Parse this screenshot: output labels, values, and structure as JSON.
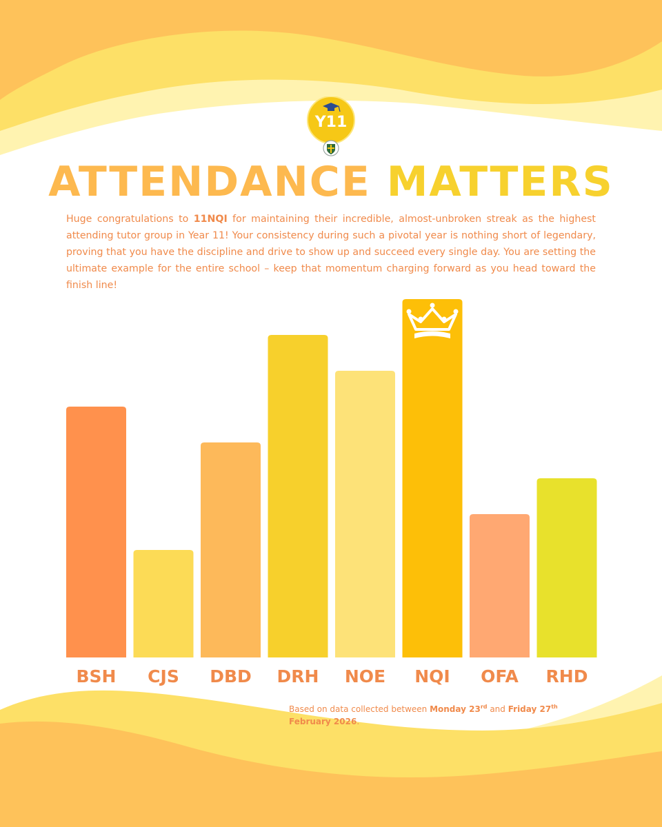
{
  "header": {
    "badge_text": "Y11",
    "title_part1": "ATTENDANCE",
    "title_part2": "MATTERS"
  },
  "intro": {
    "before": "Huge congratulations to ",
    "highlight": "11NQI",
    "after": " for maintaining their incredible, almost-unbroken streak as the highest attending tutor group in Year 11! Your consistency during such a pivotal year is nothing short of legendary, proving that you have the discipline and drive to show up and succeed every single day. You are setting the ultimate example for the entire school – keep that momentum charging forward as you head toward the finish line!"
  },
  "chart_data": {
    "type": "bar",
    "categories": [
      "BSH",
      "CJS",
      "DBD",
      "DRH",
      "NOE",
      "NQI",
      "OFA",
      "RHD"
    ],
    "values": [
      70,
      30,
      60,
      90,
      80,
      100,
      40,
      50
    ],
    "colors": [
      "#FF914D",
      "#FCDB56",
      "#FDB95A",
      "#F7D02C",
      "#FDE278",
      "#FDBF08",
      "#FFA872",
      "#E8E12C"
    ],
    "ylim": [
      0,
      100
    ],
    "grid": false,
    "highlight_category": "NQI",
    "highlight_icon": "crown-icon"
  },
  "footnote": {
    "prefix": "Based on data collected between ",
    "start_day": "Monday 23",
    "start_sup": "rd",
    "middle": " and ",
    "end_day": "Friday 27",
    "end_sup": "th",
    "end_month": "February 2026",
    "suffix": "."
  },
  "colors": {
    "orange_text": "#F08A4B",
    "title_orange": "#FDB94F",
    "title_yellow": "#F7D12E",
    "wave_dark": "#FEC25A",
    "wave_mid": "#FDE067",
    "wave_light": "#FFF3B0"
  }
}
